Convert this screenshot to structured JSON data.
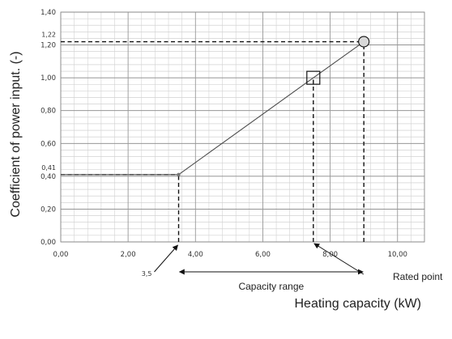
{
  "chart_data": {
    "type": "line",
    "title": "",
    "xlabel": "Heating capacity (kW)",
    "ylabel": "Coefficient of power input. (-)",
    "xlim": [
      0,
      10.8
    ],
    "ylim": [
      0,
      1.4
    ],
    "grid": true,
    "x_ticks": [
      0,
      2,
      4,
      6,
      8,
      10
    ],
    "x_tick_labels": [
      "0,00",
      "2,00",
      "4,00",
      "6,00",
      "8,00",
      "10,00"
    ],
    "y_ticks": [
      0,
      0.2,
      0.4,
      0.6,
      0.8,
      1.0,
      1.2,
      1.4
    ],
    "y_tick_labels": [
      "0,00",
      "0,20",
      "0,40",
      "0,60",
      "0,80",
      "1,00",
      "1,20",
      "1,40"
    ],
    "series": [
      {
        "x": [
          0,
          3.5,
          7.5,
          9.0
        ],
        "y": [
          0.41,
          0.41,
          1.0,
          1.22
        ],
        "color": "#4d4d4d"
      }
    ],
    "markers": [
      {
        "x": 3.5,
        "y": 0.41,
        "shape": "point"
      },
      {
        "x": 7.5,
        "y": 1.0,
        "shape": "square"
      },
      {
        "x": 9.0,
        "y": 1.22,
        "shape": "circle"
      }
    ],
    "reference_lines": [
      {
        "orientation": "horizontal",
        "y": 0.41,
        "x_from": 0,
        "x_to": 3.5
      },
      {
        "orientation": "horizontal",
        "y": 1.22,
        "x_from": 0,
        "x_to": 9.0
      },
      {
        "orientation": "vertical",
        "x": 3.5,
        "y_from": 0,
        "y_to": 0.41
      },
      {
        "orientation": "vertical",
        "x": 7.5,
        "y_from": 0,
        "y_to": 1.0
      },
      {
        "orientation": "vertical",
        "x": 9.0,
        "y_from": 0,
        "y_to": 1.22
      }
    ],
    "annotations": [
      {
        "text": "0,41",
        "kind": "y-value",
        "value": 0.41
      },
      {
        "text": "1,22",
        "kind": "y-value",
        "value": 1.22
      },
      {
        "text": "3,5",
        "kind": "x-value",
        "value": 3.5
      },
      {
        "text": "Capacity range",
        "kind": "range",
        "from": 3.5,
        "to": 9.0
      },
      {
        "text": "Rated point",
        "kind": "point-label",
        "x": 7.5
      }
    ]
  }
}
